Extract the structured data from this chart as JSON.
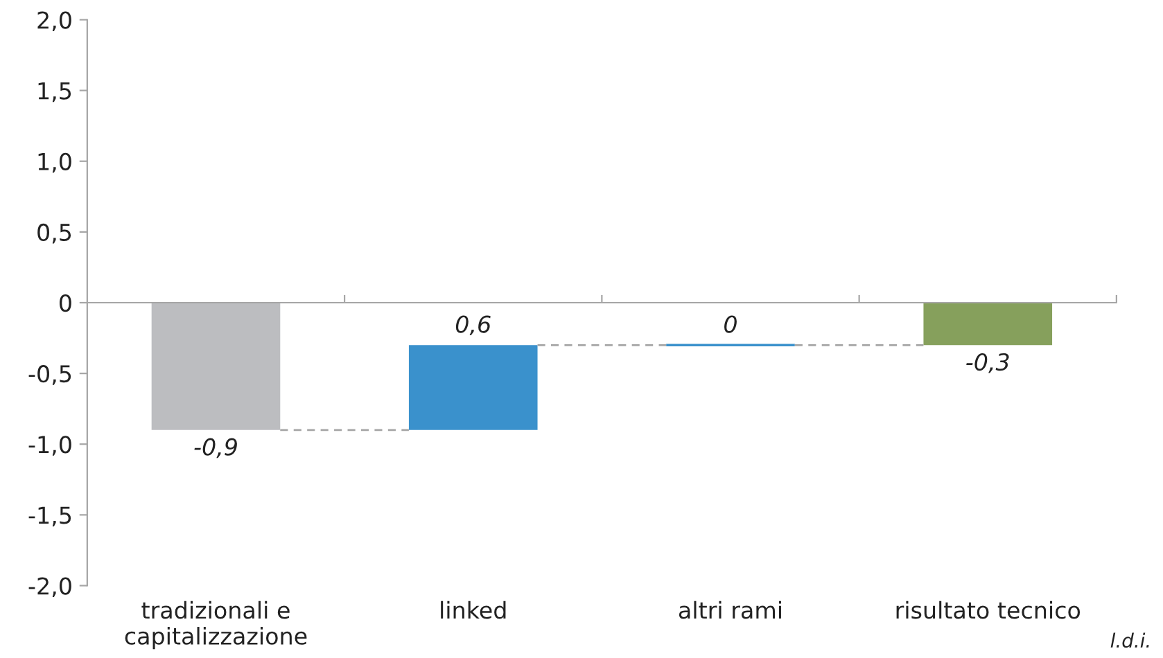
{
  "chart_data": {
    "type": "bar",
    "categories": [
      "tradizionali e\ncapitalizzazione",
      "linked",
      "altri rami",
      "risultato tecnico"
    ],
    "values": [
      -0.9,
      0.6,
      0,
      -0.3
    ],
    "base": [
      0,
      -0.9,
      -0.3,
      0
    ],
    "colors": [
      "#bcbdc0",
      "#3a91cc",
      "#3a91cc",
      "#86a05c"
    ],
    "value_labels": [
      "-0,9",
      "0,6",
      "0",
      "-0,3"
    ],
    "ylim": [
      -2.0,
      2.0
    ],
    "yticks": [
      {
        "value": -2.0,
        "label": "-2,0"
      },
      {
        "value": -1.5,
        "label": "-1,5"
      },
      {
        "value": -1.0,
        "label": "-1,0"
      },
      {
        "value": -0.5,
        "label": "-0,5"
      },
      0,
      {
        "value": 0.5,
        "label": "0,5"
      },
      {
        "value": 1.0,
        "label": "1,0"
      },
      {
        "value": 1.5,
        "label": "1,5"
      },
      {
        "value": 2.0,
        "label": "2,0"
      }
    ],
    "annotations": [
      "l.d.i."
    ]
  }
}
